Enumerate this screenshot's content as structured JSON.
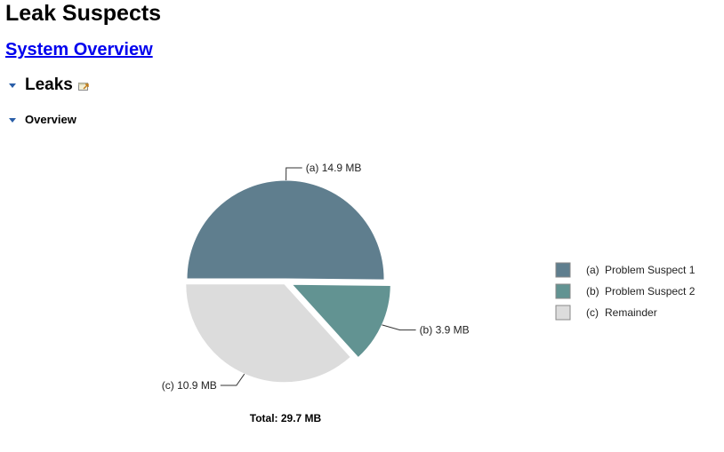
{
  "page": {
    "title": "Leak Suspects",
    "system_overview_link": "System Overview"
  },
  "sections": {
    "leaks": {
      "label": "Leaks",
      "icon": "external-link-icon"
    },
    "overview": {
      "label": "Overview"
    }
  },
  "chart_data": {
    "type": "pie",
    "title": "",
    "slices": [
      {
        "key": "(a)",
        "label": "(a)  14.9 MB",
        "legend": "Problem Suspect 1",
        "value": 14.9,
        "unit": "MB",
        "color": "#5f7e8e",
        "exploded": false
      },
      {
        "key": "(b)",
        "label": "(b)  3.9 MB",
        "legend": "Problem Suspect 2",
        "value": 3.9,
        "unit": "MB",
        "color": "#629392",
        "exploded": true
      },
      {
        "key": "(c)",
        "label": "(c)  10.9 MB",
        "legend": "Remainder",
        "value": 10.9,
        "unit": "MB",
        "color": "#dcdcdc",
        "exploded": false
      }
    ],
    "legend_entries": [
      {
        "key": "(a)",
        "text": "Problem Suspect 1"
      },
      {
        "key": "(b)",
        "text": "Problem Suspect 2"
      },
      {
        "key": "(c)",
        "text": "Remainder"
      }
    ],
    "total_label": "Total: 29.7 MB",
    "legend_position": "right"
  }
}
